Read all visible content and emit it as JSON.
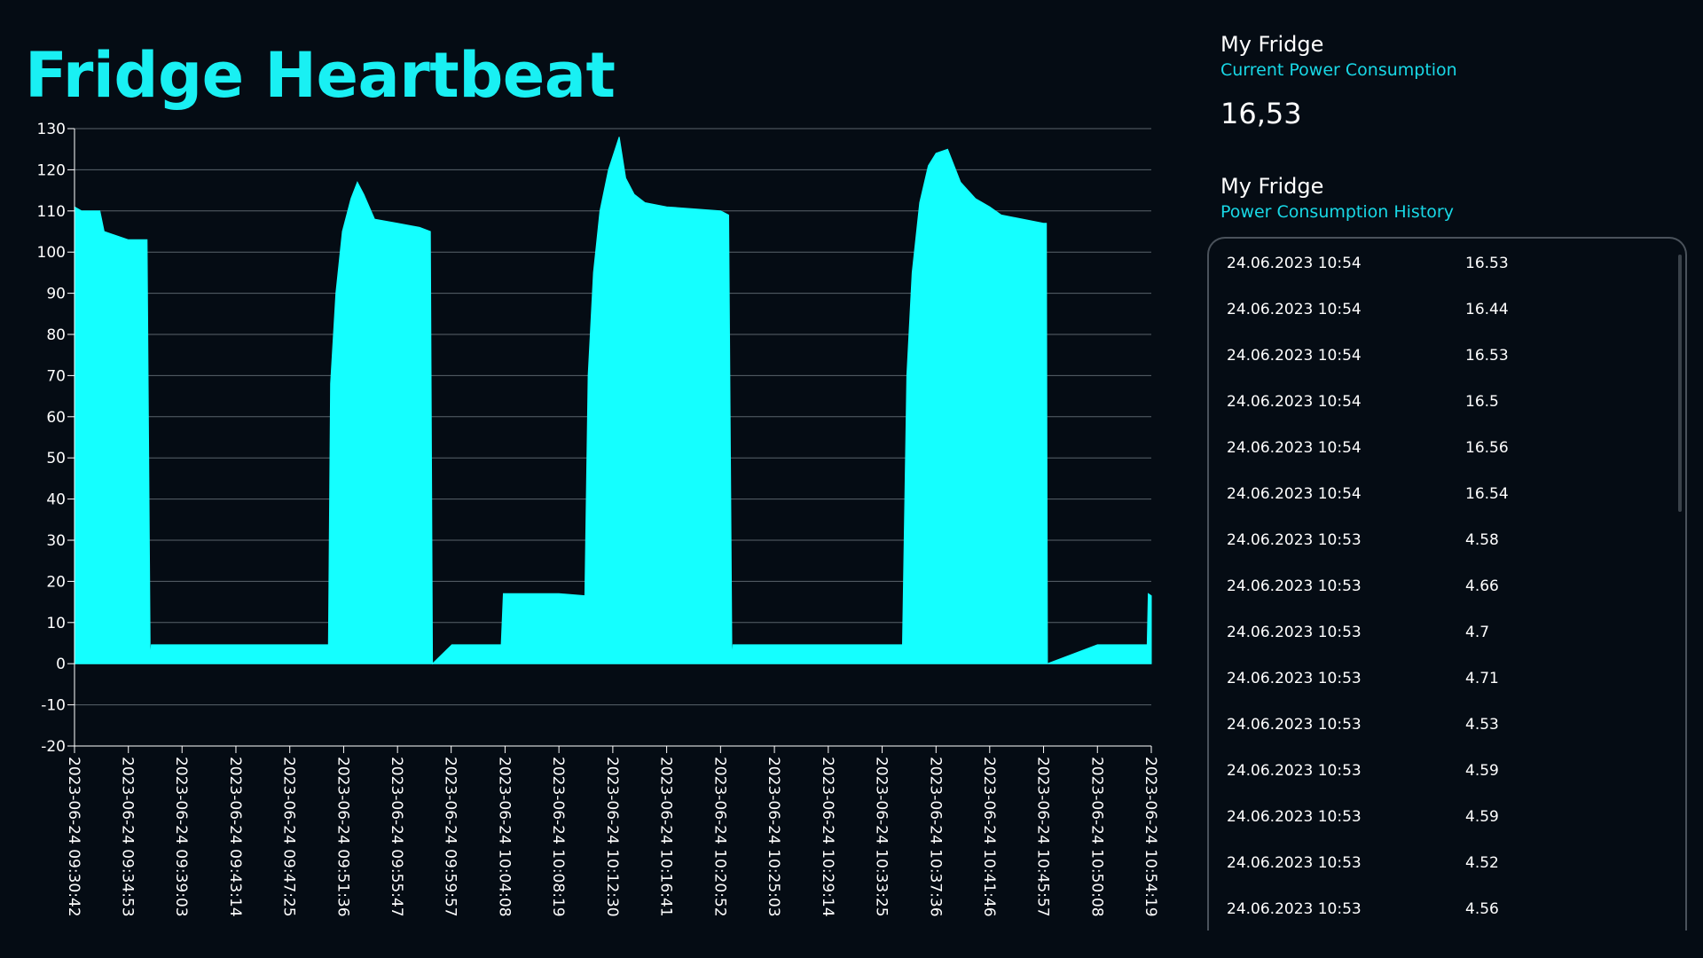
{
  "page": {
    "title": "Fridge Heartbeat"
  },
  "current": {
    "device": "My Fridge",
    "label": "Current Power Consumption",
    "value": "16,53"
  },
  "history": {
    "device": "My Fridge",
    "label": "Power Consumption History",
    "rows": [
      {
        "timestamp": "24.06.2023 10:54",
        "value": "16.53"
      },
      {
        "timestamp": "24.06.2023 10:54",
        "value": "16.44"
      },
      {
        "timestamp": "24.06.2023 10:54",
        "value": "16.53"
      },
      {
        "timestamp": "24.06.2023 10:54",
        "value": "16.5"
      },
      {
        "timestamp": "24.06.2023 10:54",
        "value": "16.56"
      },
      {
        "timestamp": "24.06.2023 10:54",
        "value": "16.54"
      },
      {
        "timestamp": "24.06.2023 10:53",
        "value": "4.58"
      },
      {
        "timestamp": "24.06.2023 10:53",
        "value": "4.66"
      },
      {
        "timestamp": "24.06.2023 10:53",
        "value": "4.7"
      },
      {
        "timestamp": "24.06.2023 10:53",
        "value": "4.71"
      },
      {
        "timestamp": "24.06.2023 10:53",
        "value": "4.53"
      },
      {
        "timestamp": "24.06.2023 10:53",
        "value": "4.59"
      },
      {
        "timestamp": "24.06.2023 10:53",
        "value": "4.59"
      },
      {
        "timestamp": "24.06.2023 10:53",
        "value": "4.52"
      },
      {
        "timestamp": "24.06.2023 10:53",
        "value": "4.56"
      }
    ]
  },
  "colors": {
    "background": "#050c14",
    "accent": "#19f0f3",
    "series_fill": "#14ffff",
    "subtitle": "#19d8e6",
    "gridline": "#5a636b"
  },
  "chart_data": {
    "type": "area",
    "title": "",
    "xlabel": "",
    "ylabel": "",
    "ylim": [
      -20,
      130
    ],
    "yticks": [
      130,
      120,
      110,
      100,
      90,
      80,
      70,
      60,
      50,
      40,
      30,
      20,
      10,
      0,
      -10,
      -20
    ],
    "grid": true,
    "x_tick_labels": [
      "2023-06-24 09:30:42",
      "2023-06-24 09:34:53",
      "2023-06-24 09:39:03",
      "2023-06-24 09:43:14",
      "2023-06-24 09:47:25",
      "2023-06-24 09:51:36",
      "2023-06-24 09:55:47",
      "2023-06-24 09:59:57",
      "2023-06-24 10:04:08",
      "2023-06-24 10:08:19",
      "2023-06-24 10:12:30",
      "2023-06-24 10:16:41",
      "2023-06-24 10:20:52",
      "2023-06-24 10:25:03",
      "2023-06-24 10:29:14",
      "2023-06-24 10:33:25",
      "2023-06-24 10:37:36",
      "2023-06-24 10:41:46",
      "2023-06-24 10:45:57",
      "2023-06-24 10:50:08",
      "2023-06-24 10:54:19"
    ],
    "series": [
      {
        "x": [
          "2023-06-24 09:30:42",
          "2023-06-24 09:31:15",
          "2023-06-24 09:32:40",
          "2023-06-24 09:33:00",
          "2023-06-24 09:34:53",
          "2023-06-24 09:36:20",
          "2023-06-24 09:36:35",
          "2023-06-24 09:36:40",
          "2023-06-24 09:40:00",
          "2023-06-24 09:45:00",
          "2023-06-24 09:50:25",
          "2023-06-24 09:50:35",
          "2023-06-24 09:51:00",
          "2023-06-24 09:51:30",
          "2023-06-24 09:52:10",
          "2023-06-24 09:52:40",
          "2023-06-24 09:53:10",
          "2023-06-24 09:54:00",
          "2023-06-24 09:55:47",
          "2023-06-24 09:57:30",
          "2023-06-24 09:58:20",
          "2023-06-24 09:58:30",
          "2023-06-24 10:00:00",
          "2023-06-24 10:03:50",
          "2023-06-24 10:04:00",
          "2023-06-24 10:08:19",
          "2023-06-24 10:10:20",
          "2023-06-24 10:10:35",
          "2023-06-24 10:11:00",
          "2023-06-24 10:11:30",
          "2023-06-24 10:12:10",
          "2023-06-24 10:13:00",
          "2023-06-24 10:13:30",
          "2023-06-24 10:14:10",
          "2023-06-24 10:15:00",
          "2023-06-24 10:16:41",
          "2023-06-24 10:20:52",
          "2023-06-24 10:21:30",
          "2023-06-24 10:21:45",
          "2023-06-24 10:21:50",
          "2023-06-24 10:25:03",
          "2023-06-24 10:29:14",
          "2023-06-24 10:33:25",
          "2023-06-24 10:35:00",
          "2023-06-24 10:35:20",
          "2023-06-24 10:35:45",
          "2023-06-24 10:36:20",
          "2023-06-24 10:37:00",
          "2023-06-24 10:37:36",
          "2023-06-24 10:38:30",
          "2023-06-24 10:39:30",
          "2023-06-24 10:40:40",
          "2023-06-24 10:41:46",
          "2023-06-24 10:42:40",
          "2023-06-24 10:45:57",
          "2023-06-24 10:46:10",
          "2023-06-24 10:46:15",
          "2023-06-24 10:50:08",
          "2023-06-24 10:54:00",
          "2023-06-24 10:54:05",
          "2023-06-24 10:54:19"
        ],
        "values": [
          111,
          110,
          110,
          105,
          103,
          103,
          0,
          4.6,
          4.6,
          4.6,
          4.6,
          68,
          90,
          105,
          113,
          117,
          114,
          108,
          107,
          106,
          105,
          0,
          4.6,
          4.6,
          17,
          17,
          16.5,
          70,
          95,
          110,
          120,
          128,
          118,
          114,
          112,
          111,
          110,
          109,
          0,
          4.6,
          4.6,
          4.6,
          4.6,
          4.6,
          70,
          95,
          112,
          121,
          124,
          125,
          117,
          113,
          111,
          109,
          107,
          107,
          0,
          4.6,
          4.6,
          17,
          16.5
        ]
      }
    ]
  }
}
